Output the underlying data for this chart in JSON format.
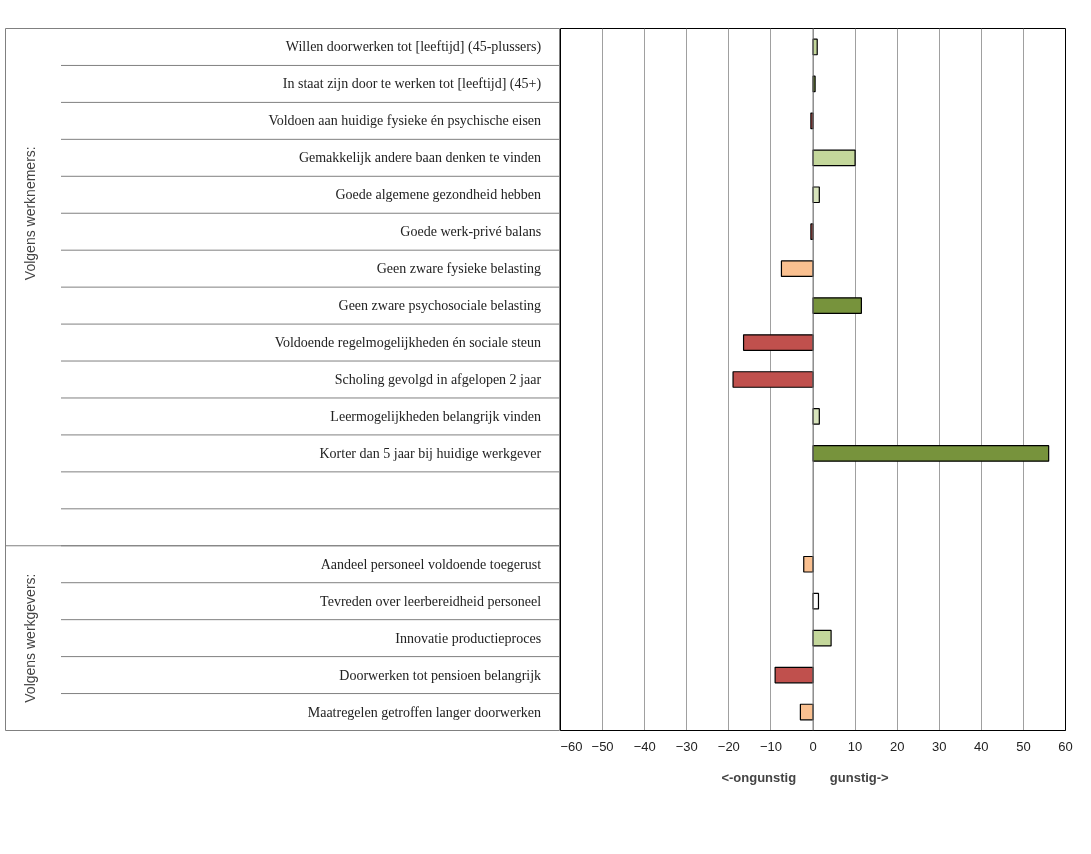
{
  "chart_data": {
    "type": "bar",
    "orientation": "horizontal",
    "categories": [
      "Willen doorwerken tot [leeftijd] (45-plussers)",
      "In staat zijn door te werken tot [leeftijd] (45+)",
      "Voldoen aan huidige fysieke én psychische eisen",
      "Gemakkelijk andere baan denken te vinden",
      "Goede algemene gezondheid hebben",
      "Goede werk-privé balans",
      "Geen zware fysieke belasting",
      "Geen zware psychosociale belasting",
      "Voldoende regelmogelijkheden én sociale steun",
      "Scholing gevolgd in afgelopen 2 jaar",
      "Leermogelijkheden belangrijk vinden",
      "Korter dan 5 jaar bij huidige werkgever",
      null,
      null,
      "Aandeel personeel voldoende toegerust",
      "Tevreden over leerbereidheid personeel",
      "Innovatie productieproces",
      "Doorwerken tot pensioen belangrijk",
      "Maatregelen getroffen langer doorwerken"
    ],
    "values": [
      1,
      0.5,
      -0.5,
      10,
      1.5,
      -0.5,
      -7.5,
      11.5,
      -16.5,
      -19,
      1.5,
      56,
      null,
      null,
      -2.2,
      1.3,
      4.3,
      -9,
      -3
    ],
    "colors": [
      "#c4d79b",
      "#77933c",
      "#c0504d",
      "#c4d79b",
      "#d8e4bc",
      "#c0504d",
      "#fac090",
      "#77933c",
      "#c0504d",
      "#c0504d",
      "#d8e4bc",
      "#77933c",
      null,
      null,
      "#fac090",
      "#ffffff",
      "#c4d79b",
      "#c0504d",
      "#fac090"
    ],
    "xlim": [
      -60,
      60
    ],
    "xticks": [
      -60,
      -50,
      -40,
      -30,
      -20,
      -10,
      0,
      10,
      20,
      30,
      40,
      50,
      60
    ],
    "grid": "x",
    "annotations": [
      "Volgens werknemers:",
      "Volgens werkgevers:",
      "<-ongunstig",
      "gunstig->"
    ]
  }
}
